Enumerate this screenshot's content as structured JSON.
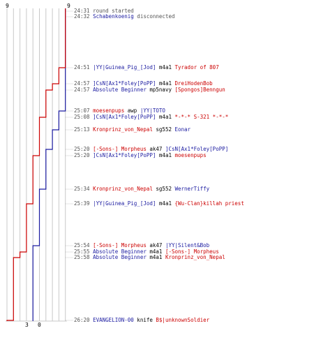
{
  "scoreboard": {
    "blue_color": "#1a1aa0",
    "red_color": "#cc0000",
    "start_blue": "9",
    "start_red": "9",
    "end_blue": "3",
    "end_red": "0",
    "events": [
      {
        "time": "24:31",
        "parts": [
          {
            "t": "round started",
            "c": "gray"
          }
        ]
      },
      {
        "time": "24:32",
        "parts": [
          {
            "t": "Schabenkoenig",
            "c": "blue"
          },
          {
            "t": " disconnected",
            "c": "gray"
          }
        ]
      },
      {
        "time": "24:51",
        "parts": [
          {
            "t": "|YY|Guinea_Pig_[Jod]",
            "c": "blue"
          },
          {
            "t": " m4a1 ",
            "c": "black"
          },
          {
            "t": "Tyrador of 807",
            "c": "red"
          }
        ]
      },
      {
        "time": "24:57",
        "parts": [
          {
            "t": "]CsN[Ax1*Foley[PoPP]",
            "c": "blue"
          },
          {
            "t": " m4a1 ",
            "c": "black"
          },
          {
            "t": "DreiHodenBob",
            "c": "red"
          }
        ]
      },
      {
        "time": "24:57",
        "parts": [
          {
            "t": "Absolute Beginner",
            "c": "blue"
          },
          {
            "t": " mp5navy ",
            "c": "black"
          },
          {
            "t": "[Spongos]Benngun",
            "c": "red"
          }
        ]
      },
      {
        "time": "25:07",
        "parts": [
          {
            "t": "moesenpups",
            "c": "red"
          },
          {
            "t": " awp ",
            "c": "black"
          },
          {
            "t": "|YY|TOTO",
            "c": "blue"
          }
        ]
      },
      {
        "time": "25:08",
        "parts": [
          {
            "t": "]CsN[Ax1*Foley[PoPP]",
            "c": "blue"
          },
          {
            "t": " m4a1 ",
            "c": "black"
          },
          {
            "t": "*-*-* S-321 *-*-*",
            "c": "red"
          }
        ]
      },
      {
        "time": "25:13",
        "parts": [
          {
            "t": "Kronprinz_von_Nepal",
            "c": "red"
          },
          {
            "t": " sg552 ",
            "c": "black"
          },
          {
            "t": "Eonar",
            "c": "blue"
          }
        ]
      },
      {
        "time": "25:20",
        "parts": [
          {
            "t": "[-Sons-] Morpheus",
            "c": "red"
          },
          {
            "t": " ak47 ",
            "c": "black"
          },
          {
            "t": "]CsN[Ax1*Foley[PoPP]",
            "c": "blue"
          }
        ]
      },
      {
        "time": "25:20",
        "parts": [
          {
            "t": "]CsN[Ax1*Foley[PoPP]",
            "c": "blue"
          },
          {
            "t": " m4a1 ",
            "c": "black"
          },
          {
            "t": "moesenpups",
            "c": "red"
          }
        ]
      },
      {
        "time": "25:34",
        "parts": [
          {
            "t": "Kronprinz_von_Nepal",
            "c": "red"
          },
          {
            "t": " sg552 ",
            "c": "black"
          },
          {
            "t": "WernerTiffy",
            "c": "blue"
          }
        ]
      },
      {
        "time": "25:39",
        "parts": [
          {
            "t": "|YY|Guinea_Pig_[Jod]",
            "c": "blue"
          },
          {
            "t": " m4a1 ",
            "c": "black"
          },
          {
            "t": "{Wu-Clan}killah priest",
            "c": "red"
          }
        ]
      },
      {
        "time": "25:54",
        "parts": [
          {
            "t": "[-Sons-] Morpheus",
            "c": "red"
          },
          {
            "t": " ak47 ",
            "c": "black"
          },
          {
            "t": "|YY|Silent&Bob",
            "c": "blue"
          }
        ]
      },
      {
        "time": "25:55",
        "parts": [
          {
            "t": "Absolute Beginner",
            "c": "blue"
          },
          {
            "t": " m4a1 ",
            "c": "black"
          },
          {
            "t": "[-Sons-] Morpheus",
            "c": "red"
          }
        ]
      },
      {
        "time": "25:58",
        "parts": [
          {
            "t": "Absolute Beginner",
            "c": "blue"
          },
          {
            "t": " m4a1 ",
            "c": "black"
          },
          {
            "t": "Kronprinz_von_Nepal",
            "c": "red"
          }
        ]
      },
      {
        "time": "26:20",
        "parts": [
          {
            "t": "EVANGELION-00",
            "c": "blue"
          },
          {
            "t": " knife ",
            "c": "black"
          },
          {
            "t": "B$|unknownSoldier",
            "c": "red"
          }
        ]
      }
    ]
  }
}
